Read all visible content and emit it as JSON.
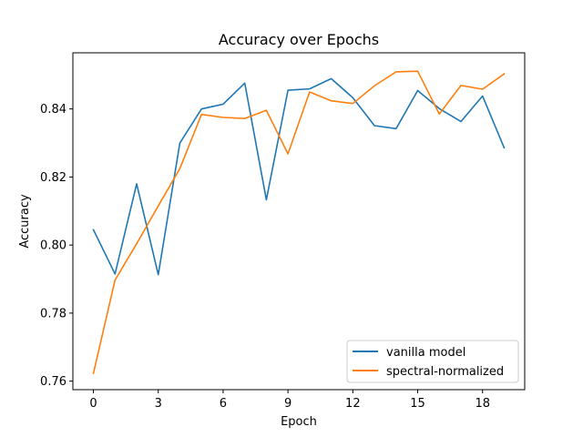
{
  "chart_data": {
    "type": "line",
    "title": "Accuracy over Epochs",
    "xlabel": "Epoch",
    "ylabel": "Accuracy",
    "x": [
      0,
      1,
      2,
      3,
      4,
      5,
      6,
      7,
      8,
      9,
      10,
      11,
      12,
      13,
      14,
      15,
      16,
      17,
      18,
      19
    ],
    "xlim": [
      -0.95,
      19.95
    ],
    "ylim": [
      0.7575,
      0.8565
    ],
    "xticks": [
      0,
      3,
      6,
      9,
      12,
      15,
      18
    ],
    "yticks": [
      0.76,
      0.78,
      0.8,
      0.82,
      0.84
    ],
    "ytick_labels": [
      "0.76",
      "0.78",
      "0.80",
      "0.82",
      "0.84"
    ],
    "grid": false,
    "legend_position": "lower-right",
    "series": [
      {
        "name": "vanilla model",
        "color": "#1f77b4",
        "values": [
          0.8045,
          0.7915,
          0.818,
          0.7913,
          0.83,
          0.84,
          0.8414,
          0.8476,
          0.8133,
          0.8455,
          0.8459,
          0.8489,
          0.8433,
          0.8351,
          0.8342,
          0.8454,
          0.8401,
          0.8363,
          0.8438,
          0.8286
        ]
      },
      {
        "name": "spectral-normalized",
        "color": "#ff7f0e",
        "values": [
          0.7623,
          0.7897,
          0.8004,
          0.8115,
          0.8225,
          0.8384,
          0.8375,
          0.8372,
          0.8396,
          0.8268,
          0.845,
          0.8424,
          0.8416,
          0.8468,
          0.8509,
          0.8511,
          0.8385,
          0.8469,
          0.8458,
          0.8503
        ]
      }
    ]
  }
}
